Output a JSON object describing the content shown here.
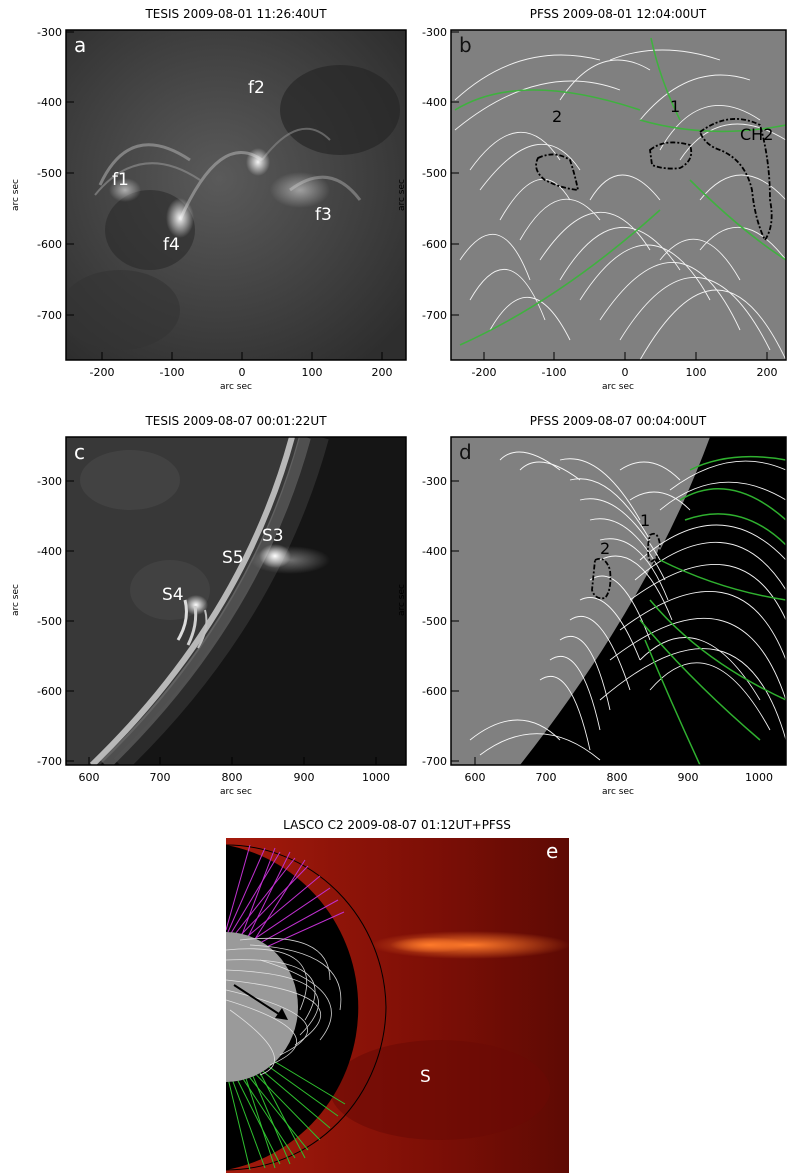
{
  "panels": {
    "a": {
      "title": "TESIS 2009-08-01 11:26:40UT",
      "letter": "a",
      "xticks": [
        "-200",
        "-100",
        "0",
        "100",
        "200"
      ],
      "yticks": [
        "-300",
        "-400",
        "-500",
        "-600",
        "-700"
      ],
      "xlabel": "arc sec",
      "ylabel": "arc sec",
      "labels": [
        "f1",
        "f2",
        "f3",
        "f4"
      ]
    },
    "b": {
      "title": "PFSS  2009-08-01 12:04:00UT",
      "letter": "b",
      "xticks": [
        "-200",
        "-100",
        "0",
        "100",
        "200"
      ],
      "yticks": [
        "-300",
        "-400",
        "-500",
        "-600",
        "-700"
      ],
      "xlabel": "arc sec",
      "ylabel": "arc sec",
      "labels": [
        "1",
        "2",
        "CH2"
      ]
    },
    "c": {
      "title": "TESIS 2009-08-07 00:01:22UT",
      "letter": "c",
      "xticks": [
        "600",
        "700",
        "800",
        "900",
        "1000"
      ],
      "yticks": [
        "-300",
        "-400",
        "-500",
        "-600",
        "-700"
      ],
      "xlabel": "arc sec",
      "ylabel": "arc sec",
      "labels": [
        "S3",
        "S5",
        "S4"
      ]
    },
    "d": {
      "title": "PFSS  2009-08-07 00:04:00UT",
      "letter": "d",
      "xticks": [
        "600",
        "700",
        "800",
        "900",
        "1000"
      ],
      "yticks": [
        "-300",
        "-400",
        "-500",
        "-600",
        "-700"
      ],
      "xlabel": "arc sec",
      "ylabel": "arc sec",
      "labels": [
        "1",
        "2"
      ]
    },
    "e": {
      "title": "LASCO C2 2009-08-07 01:12UT+PFSS",
      "letter": "e",
      "labels": [
        "S"
      ]
    }
  },
  "colors": {
    "tesis_bg": "#3e3e3e",
    "pfss_bg": "#808080",
    "field_line": "#ffffff",
    "open_field": "#3fb13f",
    "lasco_red": "#8c1208",
    "magenta": "#c030d0",
    "green": "#2fc02f"
  }
}
